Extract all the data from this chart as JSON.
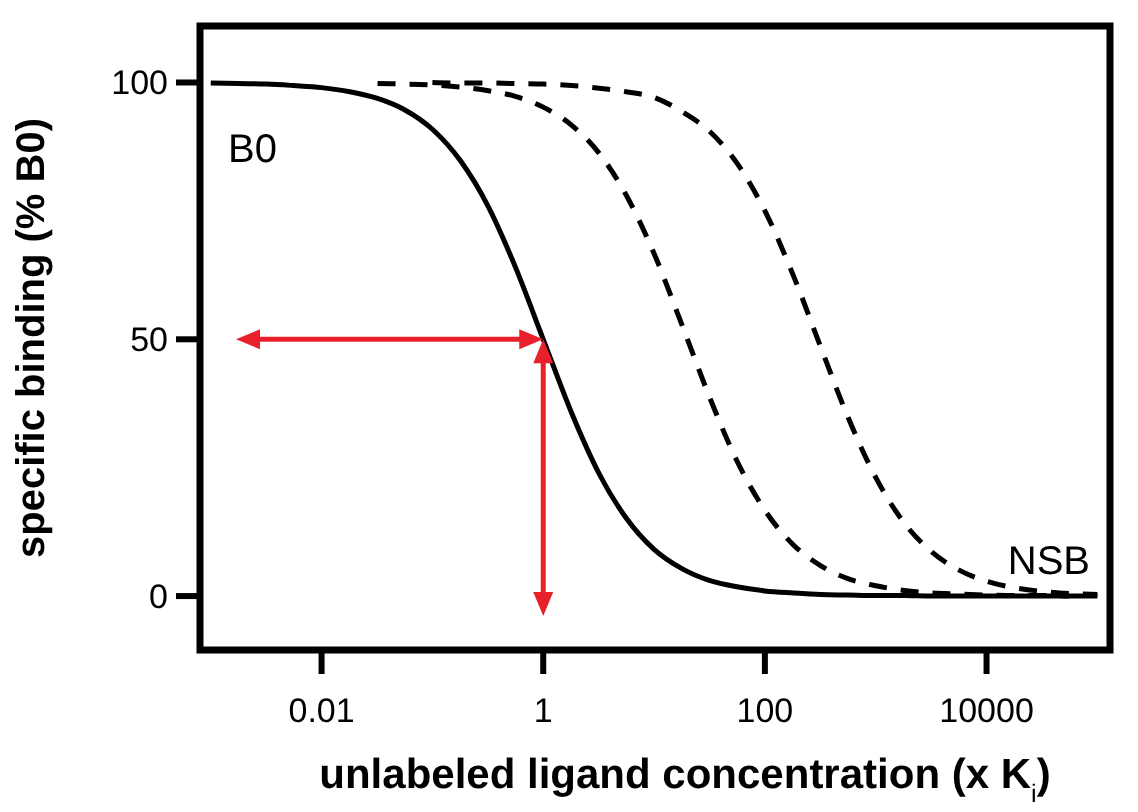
{
  "chart_data": {
    "type": "line",
    "xlabel": "unlabeled ligand concentration (x K$_{i}$)",
    "ylabel": "specific binding (% B0)",
    "log": "x",
    "xlim": [
      0.0008,
      130000
    ],
    "ylim": [
      -10.5,
      111
    ],
    "xticks": [
      0.01,
      1,
      100,
      10000
    ],
    "yticks": [
      0,
      50,
      100
    ],
    "grid": false,
    "marker": "none",
    "x": [
      0.001,
      0.0018,
      0.0032,
      0.0056,
      0.01,
      0.018,
      0.032,
      0.056,
      0.1,
      0.18,
      0.32,
      0.56,
      1,
      1.8,
      3.2,
      5.6,
      10,
      18,
      32,
      56,
      100,
      180,
      320,
      560,
      1000,
      1800,
      3200,
      5600,
      10000,
      18000,
      32000,
      56000,
      100000
    ],
    "series": [
      {
        "color": "#000000",
        "line_style": "solid",
        "values": [
          99.9,
          99.8,
          99.7,
          99.4,
          99,
          98.2,
          96.9,
          94.7,
          90.9,
          84.7,
          75.8,
          64.1,
          50,
          35.7,
          23.8,
          15.2,
          9.1,
          5.3,
          3.0,
          1.8,
          1,
          0.6,
          0.3,
          0.2,
          0.1,
          0.1,
          0,
          0,
          0,
          0,
          0,
          0,
          0
        ]
      },
      {
        "color": "#000000",
        "line_style": "dashed",
        "x": [
          0.032,
          0.056,
          0.1,
          0.18,
          0.32,
          0.56,
          1,
          1.8,
          3.2,
          5.6,
          10,
          18,
          32,
          56,
          100,
          180,
          320,
          560,
          1000,
          1800,
          3200,
          5600,
          10000,
          18000,
          32000,
          56000
        ],
        "values": [
          99.8,
          99.7,
          99.5,
          99.1,
          98.4,
          97.3,
          95.2,
          91.7,
          86.2,
          78.1,
          66.7,
          52.6,
          38.5,
          26.3,
          16.7,
          10,
          5.9,
          3.4,
          2.0,
          1.1,
          0.6,
          0.4,
          0.2,
          0.1,
          0.1,
          0
        ]
      },
      {
        "color": "#000000",
        "line_style": "dashed",
        "x": [
          0.1,
          0.18,
          0.32,
          0.56,
          1,
          1.8,
          3.2,
          5.6,
          10,
          18,
          32,
          56,
          100,
          180,
          320,
          560,
          1000,
          1800,
          3200,
          5600,
          10000,
          18000,
          32000,
          56000,
          100000
        ],
        "values": [
          100,
          99.9,
          99.9,
          99.8,
          99.7,
          99.4,
          98.9,
          98.2,
          97.1,
          94.3,
          90.4,
          84.3,
          75,
          62.5,
          48.4,
          34.9,
          23.1,
          14.3,
          8.6,
          5.1,
          2.9,
          1.6,
          0.9,
          0.5,
          0.3
        ]
      }
    ],
    "annotations": [
      "B0",
      "NSB"
    ]
  }
}
